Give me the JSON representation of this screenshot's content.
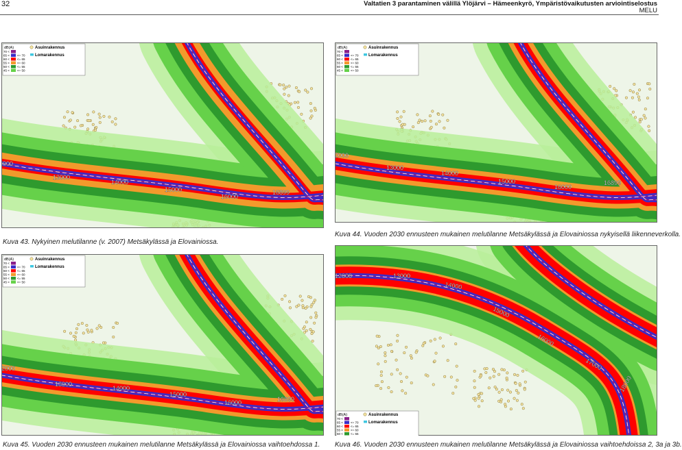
{
  "header": {
    "page": "32",
    "title": "Valtatien 3 parantaminen välillä Ylöjärvi – Hämeenkyrö, Ympäristövaikutusten arviointiselostus",
    "subtitle": "MELU"
  },
  "legend": {
    "unit": "dB(A)",
    "rows": [
      {
        "lower": "70 <"
      },
      {
        "lower": "65 <",
        "upper": "<= 70"
      },
      {
        "lower": "60 <",
        "upper": "<= 65"
      },
      {
        "lower": "55 <",
        "upper": "<= 60"
      },
      {
        "lower": "50 <",
        "upper": "<= 55"
      },
      {
        "lower": "45 <",
        "upper": "<= 50"
      }
    ],
    "markers": [
      "Asuinrakennus",
      "Lomarakennus"
    ]
  },
  "maps": [
    {
      "caption": "Kuva 43.  Nykyinen melutilanne (v. 2007) Metsäkylässä ja Elovainiossa.",
      "chainages": [
        "12000",
        "13000",
        "14000",
        "15000",
        "16000",
        "16899"
      ]
    },
    {
      "caption": "Kuva 44. Vuoden 2030 ennusteen mukainen melutilanne Metsäkylässä ja Elovainiossa nykyisellä liikenneverkolla.",
      "chainages": [
        "12000",
        "13000",
        "14000",
        "15000",
        "16000",
        "16899"
      ]
    },
    {
      "caption": "Kuva 45. Vuoden 2030 ennusteen mukainen melutilanne Metsäkylässä ja Elovainiossa vaihtoehdossa 1.",
      "chainages": [
        "12000",
        "13000",
        "14000",
        "15000",
        "16000",
        "16899"
      ]
    },
    {
      "caption": "Kuva 46. Vuoden 2030 ennusteen mukainen melutilanne Metsäkylässä ja Elovainiossa vaihtoehdoissa 2, 3a ja 3b.",
      "chainages": [
        "12000",
        "13000",
        "14000",
        "15000",
        "16000",
        "17000",
        "18000"
      ]
    }
  ]
}
